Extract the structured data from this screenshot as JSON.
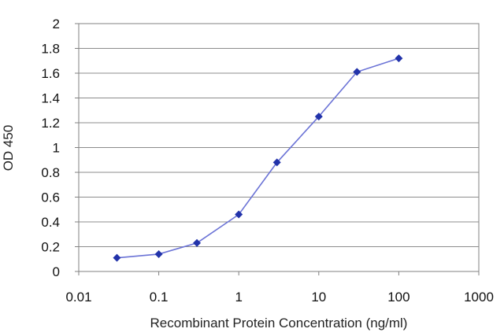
{
  "chart_data": {
    "type": "line",
    "title": "",
    "xlabel": "Recombinant Protein Concentration (ng/ml)",
    "ylabel": "OD 450",
    "x_scale": "log",
    "xlim": [
      0.01,
      1000
    ],
    "ylim": [
      0,
      2
    ],
    "x_ticks": [
      "0.01",
      "0.1",
      "1",
      "10",
      "100",
      "1000"
    ],
    "y_ticks": [
      "0",
      "0.2",
      "0.4",
      "0.6",
      "0.8",
      "1",
      "1.2",
      "1.4",
      "1.6",
      "1.8",
      "2"
    ],
    "grid": "horizontal",
    "legend": "none",
    "series": [
      {
        "x": [
          0.03,
          0.1,
          0.3,
          1,
          3,
          10,
          30,
          100
        ],
        "y": [
          0.11,
          0.14,
          0.23,
          0.46,
          0.88,
          1.25,
          1.61,
          1.72
        ],
        "color": "#2233aa",
        "line_color": "#6b73d6"
      }
    ]
  }
}
